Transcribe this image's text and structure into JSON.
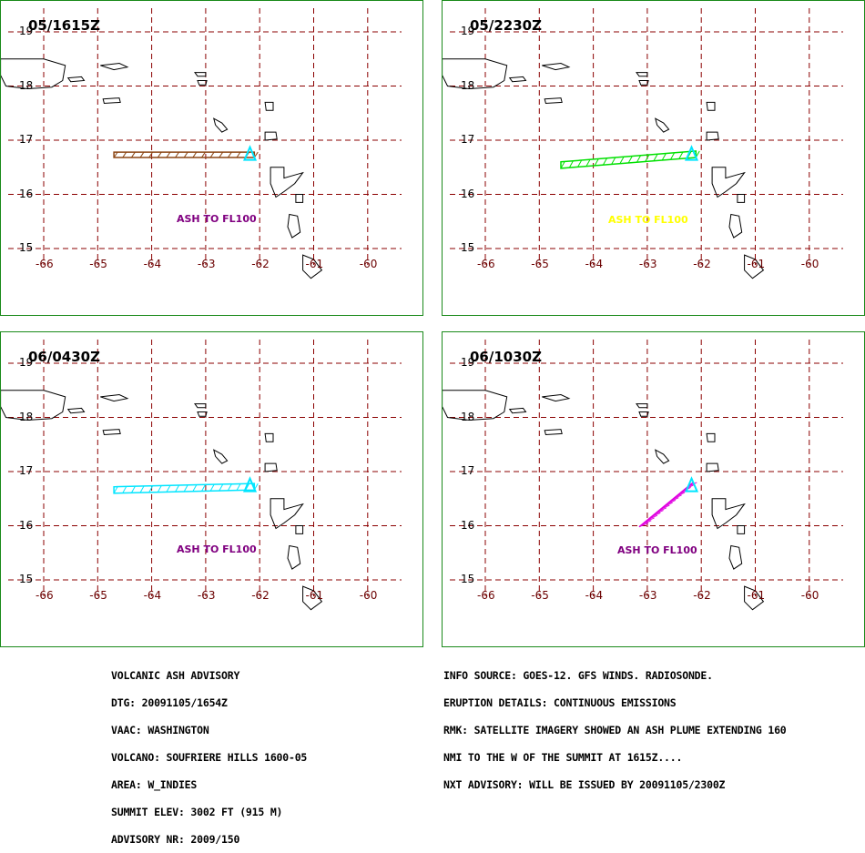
{
  "panels": [
    {
      "time": "05/1615Z",
      "ash_label": "ASH TO FL100",
      "ash_label_color": "#800080",
      "plume_color": "#8b4513",
      "plume": [
        [
          -64.7,
          16.78
        ],
        [
          -62.1,
          16.78
        ],
        [
          -62.1,
          16.68
        ],
        [
          -64.7,
          16.68
        ]
      ]
    },
    {
      "time": "05/2230Z",
      "ash_label": "ASH TO FL100",
      "ash_label_color": "#ffff00",
      "plume_color": "#00e000",
      "plume": [
        [
          -64.6,
          16.6
        ],
        [
          -62.1,
          16.8
        ],
        [
          -62.1,
          16.68
        ],
        [
          -64.6,
          16.48
        ]
      ]
    },
    {
      "time": "06/0430Z",
      "ash_label": "ASH TO FL100",
      "ash_label_color": "#800080",
      "plume_color": "#00e5ff",
      "plume": [
        [
          -64.7,
          16.72
        ],
        [
          -62.1,
          16.78
        ],
        [
          -62.1,
          16.66
        ],
        [
          -64.7,
          16.6
        ]
      ]
    },
    {
      "time": "06/1030Z",
      "ash_label": "ASH TO FL100",
      "ash_label_color": "#800080",
      "plume_color": "#e000e0",
      "plume": [
        [
          -63.05,
          16.05
        ],
        [
          -62.15,
          16.8
        ],
        [
          -62.25,
          16.72
        ],
        [
          -63.15,
          15.98
        ]
      ]
    }
  ],
  "axes": {
    "lon_ticks": [
      "-66",
      "-65",
      "-64",
      "-63",
      "-62",
      "-61",
      "-60"
    ],
    "lat_ticks": [
      "19",
      "18",
      "17",
      "16",
      "15"
    ],
    "lon_values": [
      -66,
      -65,
      -64,
      -63,
      -62,
      -61,
      -60
    ],
    "lat_values": [
      19,
      18,
      17,
      16,
      15
    ]
  },
  "volcano": {
    "lon": -62.18,
    "lat": 16.72,
    "color": "#00e5ff"
  },
  "advisory_left": [
    "VOLCANIC ASH ADVISORY",
    "DTG: 20091105/1654Z",
    "VAAC: WASHINGTON",
    "VOLCANO: SOUFRIERE HILLS 1600-05",
    "AREA: W_INDIES",
    "SUMMIT ELEV: 3002 FT (915 M)",
    "ADVISORY NR: 2009/150"
  ],
  "advisory_right": [
    "INFO SOURCE: GOES-12. GFS WINDS. RADIOSONDE.",
    "ERUPTION DETAILS: CONTINUOUS EMISSIONS",
    "RMK: SATELLITE IMAGERY SHOWED AN ASH PLUME EXTENDING 160",
    "NMI TO THE W OF THE SUMMIT AT 1615Z....",
    "NXT ADVISORY: WILL BE ISSUED BY 20091105/2300Z"
  ],
  "colors": {
    "grid": "#8b0000",
    "border": "#1a8a1a",
    "xtick": "#6b0000"
  }
}
